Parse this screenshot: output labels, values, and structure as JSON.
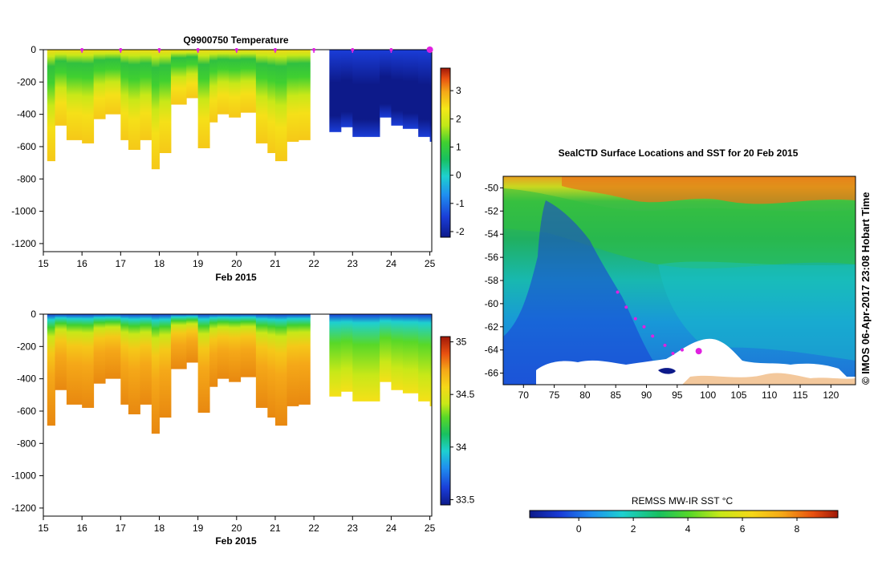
{
  "chart_data": [
    {
      "id": "temperature",
      "type": "heatmap",
      "title": "Q9900750  Temperature",
      "xlabel": "Feb 2015",
      "ylabel": "",
      "x_ticks": [
        "15",
        "16",
        "17",
        "18",
        "19",
        "20",
        "21",
        "22",
        "23",
        "24",
        "25"
      ],
      "xlim": [
        15,
        25.05
      ],
      "y_ticks": [
        "0",
        "-200",
        "-400",
        "-600",
        "-800",
        "-1000",
        "-1200"
      ],
      "ylim": [
        -1250,
        0
      ],
      "colorbar": {
        "ticks": [
          "3",
          "2",
          "1",
          "0",
          "-1",
          "-2"
        ],
        "range": [
          -2.2,
          3.8
        ]
      },
      "profile_days": [
        15.1,
        15.3,
        15.6,
        16.0,
        16.3,
        16.6,
        17.0,
        17.2,
        17.5,
        17.8,
        18.0,
        18.3,
        18.7,
        19.0,
        19.3,
        19.5,
        19.8,
        20.1,
        20.5,
        20.8,
        21.0,
        21.3,
        21.6,
        21.9,
        22.4,
        22.7,
        23.0,
        23.3,
        23.7,
        24.0,
        24.3,
        24.7,
        25.0
      ],
      "profile_max_depth": [
        690,
        470,
        560,
        580,
        430,
        400,
        560,
        620,
        560,
        740,
        640,
        340,
        300,
        610,
        450,
        400,
        420,
        390,
        580,
        640,
        690,
        570,
        560,
        0,
        510,
        480,
        540,
        540,
        420,
        470,
        490,
        540,
        570
      ],
      "markers": [
        16,
        17,
        18,
        19,
        20,
        21,
        22,
        23,
        24,
        25
      ]
    },
    {
      "id": "salinity",
      "type": "heatmap",
      "title": "",
      "xlabel": "Feb 2015",
      "ylabel": "",
      "x_ticks": [
        "15",
        "16",
        "17",
        "18",
        "19",
        "20",
        "21",
        "22",
        "23",
        "24",
        "25"
      ],
      "xlim": [
        15,
        25.05
      ],
      "y_ticks": [
        "0",
        "-200",
        "-400",
        "-600",
        "-800",
        "-1000",
        "-1200"
      ],
      "ylim": [
        -1250,
        0
      ],
      "colorbar": {
        "ticks": [
          "35",
          "34.5",
          "34",
          "33.5"
        ],
        "range": [
          33.45,
          35.05
        ]
      }
    },
    {
      "id": "sst-map",
      "type": "heatmap",
      "title": "SealCTD Surface Locations and SST for 20 Feb 2015",
      "xlabel": "",
      "ylabel": "",
      "x_ticks": [
        "70",
        "75",
        "80",
        "85",
        "90",
        "95",
        "100",
        "105",
        "110",
        "115",
        "120"
      ],
      "xlim": [
        66.7,
        124
      ],
      "y_ticks": [
        "-50",
        "-52",
        "-54",
        "-56",
        "-58",
        "-60",
        "-62",
        "-64",
        "-66"
      ],
      "ylim": [
        -67,
        -49
      ],
      "colorbar_label": "REMSS MW-IR SST °C",
      "colorbar_ticks": [
        "0",
        "2",
        "4",
        "6",
        "8"
      ],
      "colorbar_range": [
        -1.8,
        9.5
      ],
      "track": [
        [
          85.3,
          -59
        ],
        [
          86.7,
          -60.3
        ],
        [
          88.2,
          -61.3
        ],
        [
          89.6,
          -62
        ],
        [
          91,
          -62.8
        ],
        [
          93,
          -63.6
        ],
        [
          94.3,
          -64.3
        ],
        [
          95.8,
          -64
        ],
        [
          98.5,
          -64.1
        ]
      ]
    }
  ],
  "credit": "© IMOS 06-Apr-2017 23:08 Hobart Time"
}
